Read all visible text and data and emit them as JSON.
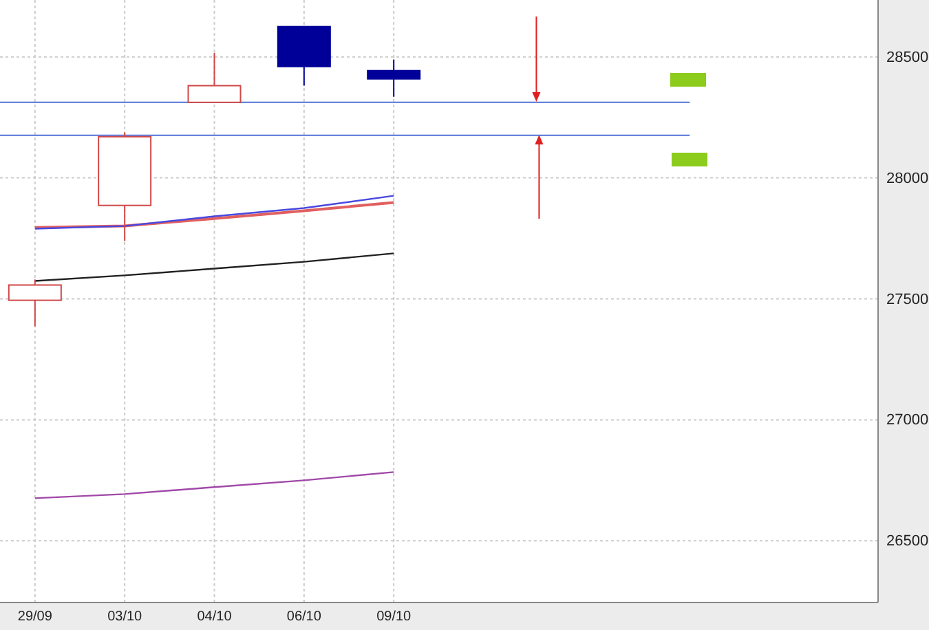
{
  "chart_data": {
    "type": "candlestick",
    "categories": [
      "29/09",
      "03/10",
      "04/10",
      "06/10",
      "09/10",
      null,
      null,
      null,
      null,
      null
    ],
    "ohlc": [
      [
        27494,
        27580,
        27386,
        27557
      ],
      [
        27886,
        28188,
        27739,
        28170
      ],
      [
        28312,
        28517,
        28312,
        28381
      ],
      [
        28625,
        28625,
        28381,
        28460
      ],
      [
        28443,
        28489,
        28335,
        28409
      ],
      null,
      null,
      null,
      null,
      null
    ],
    "colors": [
      "#d04848",
      "#d04848",
      "#d04848",
      "#000099",
      "#000099",
      null,
      null,
      null,
      null,
      null
    ],
    "series": [
      {
        "type": "line",
        "color": "#e06060",
        "values": [
          27795,
          27801,
          27832,
          27864,
          27898,
          null,
          null,
          null,
          null,
          null
        ]
      },
      {
        "type": "line",
        "color": "#4848e0",
        "values": [
          27790,
          27801,
          27841,
          27875,
          27926,
          null,
          null,
          null,
          null,
          null
        ]
      },
      {
        "type": "line",
        "color": "#202020",
        "values": [
          27574,
          27597,
          27625,
          27653,
          27688,
          null,
          null,
          null,
          null,
          null
        ]
      },
      {
        "type": "line",
        "color": "#a048a8",
        "values": [
          26676,
          26693,
          26722,
          26750,
          26784,
          null,
          null,
          null,
          null,
          null
        ]
      }
    ],
    "ref_lines": [
      {
        "axis": "y",
        "value": 28312,
        "color": "#5070d8"
      },
      {
        "axis": "y",
        "value": 28176,
        "color": "#5070d8"
      }
    ],
    "ylim": [
      26245,
      28735
    ],
    "yticks": [
      26500,
      27000,
      27500,
      28000,
      28500
    ],
    "grid": true
  }
}
